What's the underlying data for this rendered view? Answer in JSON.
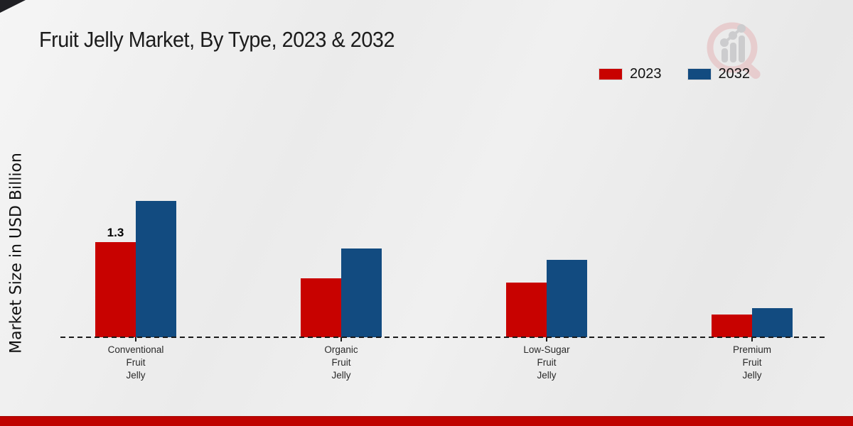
{
  "chart_data": {
    "type": "bar",
    "title": "Fruit Jelly Market, By Type, 2023 & 2032",
    "ylabel": "Market Size in USD Billion",
    "xlabel": "",
    "categories": [
      "Conventional Fruit Jelly",
      "Organic Fruit Jelly",
      "Low-Sugar Fruit Jelly",
      "Premium Fruit Jelly"
    ],
    "series": [
      {
        "name": "2023",
        "color": "#c80200",
        "values": [
          1.3,
          0.81,
          0.75,
          0.31
        ],
        "bar_labels": [
          "1.3",
          "",
          "",
          ""
        ]
      },
      {
        "name": "2032",
        "color": "#124b80",
        "values": [
          1.86,
          1.21,
          1.06,
          0.4
        ],
        "bar_labels": [
          "",
          "",
          "",
          ""
        ]
      }
    ],
    "ylim": [
      0,
      2.0
    ],
    "grid": false,
    "legend_position": "top-right",
    "axis_style": "dashed-baseline-only"
  },
  "branding": {
    "logo_name": "magnifier-growth-chart-watermark",
    "footer_band_color": "#bf0300",
    "accent_colors": {
      "red": "#c80200",
      "blue": "#124b80"
    }
  }
}
